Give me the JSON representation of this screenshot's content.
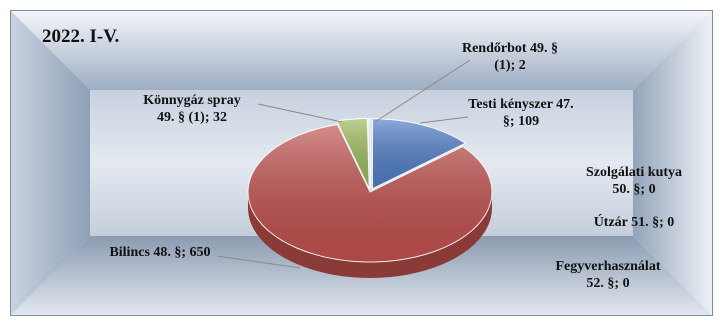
{
  "chart_data": {
    "type": "pie",
    "title": "2022. I-V.",
    "slices": [
      {
        "label_lines": [
          "Testi kényszer 47.",
          "§; 109"
        ],
        "value": 109,
        "color": "#4f7dc6"
      },
      {
        "label_lines": [
          "Szolgálati kutya",
          "50. §; 0"
        ],
        "value": 0,
        "color": "#8064a2"
      },
      {
        "label_lines": [
          "Útzár 51. §; 0"
        ],
        "value": 0,
        "color": "#4bacc6"
      },
      {
        "label_lines": [
          "Fegyverhasználat",
          "52. §; 0"
        ],
        "value": 0,
        "color": "#f79646"
      },
      {
        "label_lines": [
          "Bilincs 48. §; 650"
        ],
        "value": 650,
        "color": "#c0504d"
      },
      {
        "label_lines": [
          "Könnygáz spray",
          "49. § (1); 32"
        ],
        "value": 32,
        "color": "#9bbb59"
      },
      {
        "label_lines": [
          "Rendőrbot 49. §",
          "(1); 2"
        ],
        "value": 2,
        "color": "#d9d9d9"
      }
    ]
  }
}
